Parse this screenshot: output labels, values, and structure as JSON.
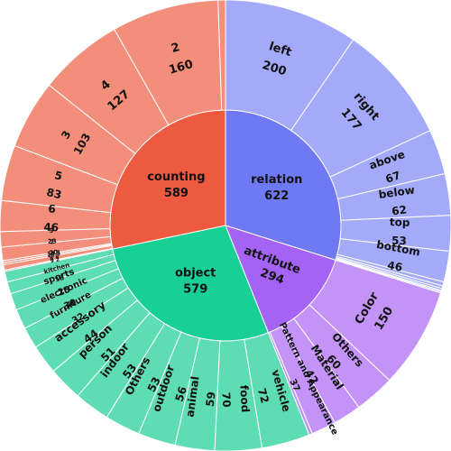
{
  "chart_data": {
    "type": "sunburst",
    "title": "",
    "start_angle_deg": 90,
    "direction": "clockwise",
    "categories": [
      {
        "name": "relation",
        "value": 622,
        "color": "#6f79f4",
        "child_color": "#a3aafa",
        "children": [
          {
            "name": "left",
            "value": 200
          },
          {
            "name": "right",
            "value": 177
          },
          {
            "name": "above",
            "value": 67
          },
          {
            "name": "below",
            "value": 62
          },
          {
            "name": "top",
            "value": 53
          },
          {
            "name": "bottom",
            "value": 46
          },
          {
            "name": "",
            "value": 6
          },
          {
            "name": "",
            "value": 4
          },
          {
            "name": "",
            "value": 3
          },
          {
            "name": "",
            "value": 2
          },
          {
            "name": "",
            "value": 2
          }
        ]
      },
      {
        "name": "attribute",
        "value": 294,
        "color": "#a463f5",
        "child_color": "#c393f8",
        "children": [
          {
            "name": "Color",
            "value": 150
          },
          {
            "name": "Others",
            "value": 60
          },
          {
            "name": "Material",
            "value": 42
          },
          {
            "name": "Pattern and Appearance",
            "value": 37
          },
          {
            "name": "",
            "value": 5
          }
        ]
      },
      {
        "name": "object",
        "value": 579,
        "color": "#18cf95",
        "child_color": "#5edcb3",
        "children": [
          {
            "name": "vehicle",
            "value": 72
          },
          {
            "name": "food",
            "value": 70
          },
          {
            "name": "animal",
            "value": 59
          },
          {
            "name": "outdoor",
            "value": 56
          },
          {
            "name": "Others",
            "value": 53
          },
          {
            "name": "indoor",
            "value": 53
          },
          {
            "name": "person",
            "value": 51
          },
          {
            "name": "accessory",
            "value": 44
          },
          {
            "name": "furniture",
            "value": 32
          },
          {
            "name": "electronic",
            "value": 30
          },
          {
            "name": "sports",
            "value": 25
          },
          {
            "name": "kitchen",
            "value": 18
          },
          {
            "name": "",
            "value": 16
          }
        ]
      },
      {
        "name": "counting",
        "value": 589,
        "color": "#ee5a3f",
        "child_color": "#f38e7a",
        "children": [
          {
            "name": "9",
            "value": 2
          },
          {
            "name": "8",
            "value": 8
          },
          {
            "name": "28",
            "value": 3
          },
          {
            "name": "33",
            "value": 3
          },
          {
            "name": "7",
            "value": 20
          },
          {
            "name": "9",
            "value": 23
          },
          {
            "name": "6",
            "value": 46
          },
          {
            "name": "5",
            "value": 83
          },
          {
            "name": "3",
            "value": 103
          },
          {
            "name": "4",
            "value": 127
          },
          {
            "name": "2",
            "value": 160
          },
          {
            "name": "",
            "value": 11
          }
        ]
      }
    ]
  }
}
